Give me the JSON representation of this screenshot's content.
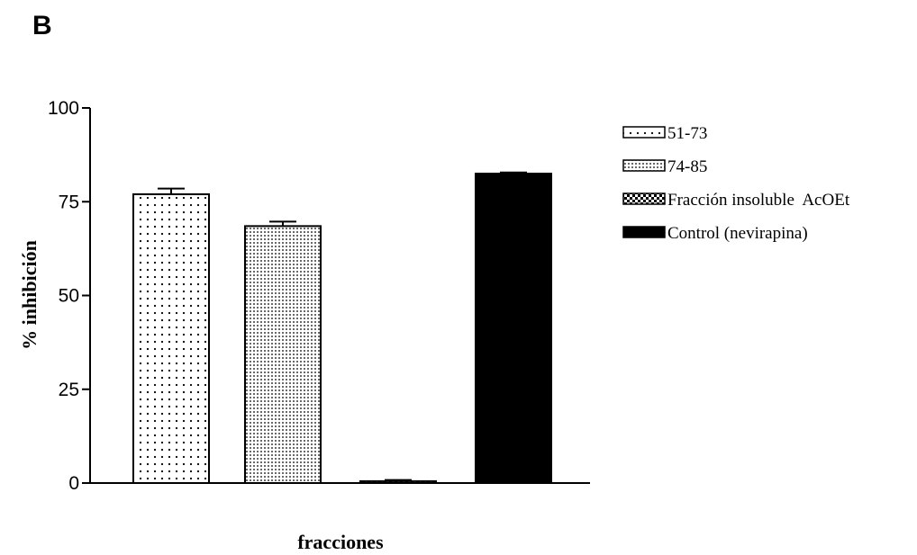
{
  "panel_label": "B",
  "colors": {
    "ink": "#000000",
    "background": "#ffffff"
  },
  "chart_data": {
    "type": "bar",
    "categories": [
      "51-73",
      "74-85",
      "Fracción insoluble AcOEt",
      "Control (nevirapina)"
    ],
    "values": [
      77,
      68.5,
      0.5,
      82.5
    ],
    "errors": [
      1.5,
      1.2,
      0.3,
      0.3
    ],
    "patterns": [
      "dots-sparse",
      "dots-dense",
      "checker",
      "solid"
    ],
    "xlabel": "fracciones",
    "ylabel": "% inhibición",
    "ylim": [
      0,
      100
    ],
    "yticks": [
      0,
      25,
      50,
      75,
      100
    ],
    "ytick_labels": [
      "0",
      "25",
      "50",
      "75",
      "100"
    ],
    "grid": false,
    "legend_position": "right",
    "legend": [
      {
        "label": "51-73",
        "pattern": "dots-sparse"
      },
      {
        "label": "74-85",
        "pattern": "dots-dense"
      },
      {
        "label": "Fracción insoluble  AcOEt",
        "pattern": "checker"
      },
      {
        "label": "Control (nevirapina)",
        "pattern": "solid"
      }
    ]
  }
}
